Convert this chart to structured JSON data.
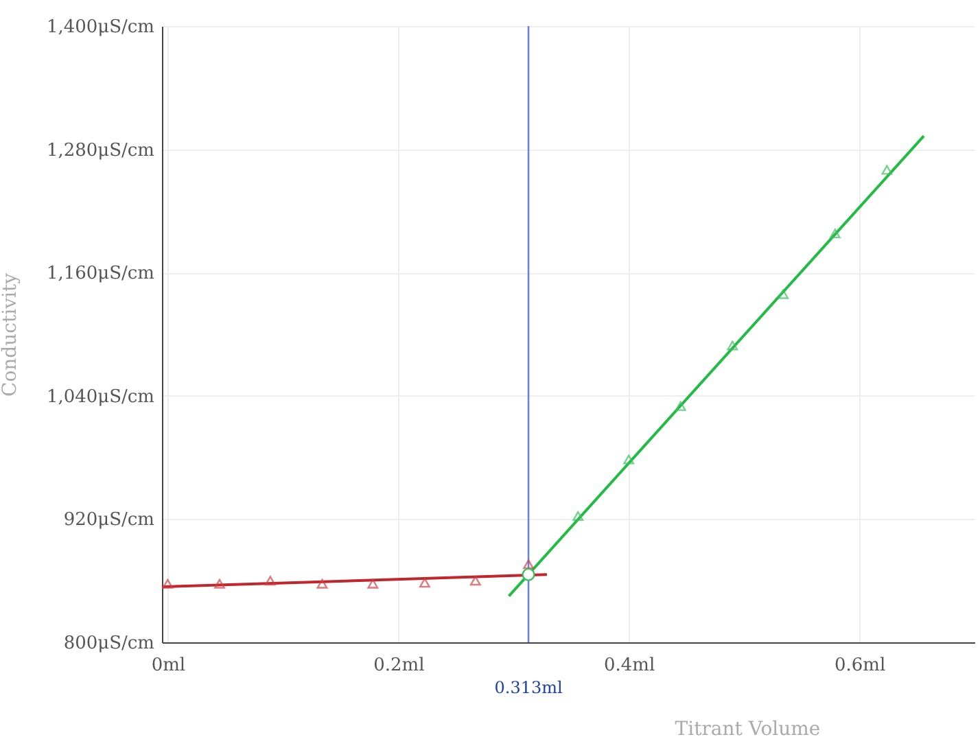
{
  "chart_data": {
    "type": "scatter",
    "xlabel": "Titrant Volume",
    "ylabel": "Conductivity",
    "xlim": [
      -0.005,
      0.7
    ],
    "ylim": [
      800,
      1400
    ],
    "xticks": [
      {
        "value": 0,
        "label": "0ml"
      },
      {
        "value": 0.2,
        "label": "0.2ml"
      },
      {
        "value": 0.4,
        "label": "0.4ml"
      },
      {
        "value": 0.6,
        "label": "0.6ml"
      }
    ],
    "yticks": [
      {
        "value": 800,
        "label": "800μS/cm"
      },
      {
        "value": 920,
        "label": "920μS/cm"
      },
      {
        "value": 1040,
        "label": "1,040μS/cm"
      },
      {
        "value": 1160,
        "label": "1,160μS/cm"
      },
      {
        "value": 1280,
        "label": "1,280μS/cm"
      },
      {
        "value": 1400,
        "label": "1,400μS/cm"
      }
    ],
    "grid": true,
    "series": [
      {
        "marker": "triangle",
        "color": "#d0424a",
        "x": [
          0,
          0.045,
          0.089,
          0.134,
          0.178,
          0.223,
          0.267,
          0.313
        ],
        "values": [
          857,
          857,
          860,
          857,
          857,
          858,
          860,
          876
        ]
      },
      {
        "type": "line",
        "color": "#c0262b",
        "x": [
          -0.005,
          0.329
        ],
        "values": [
          854,
          866
        ]
      },
      {
        "marker": "triangle",
        "color": "#3cc060",
        "x": [
          0.356,
          0.4,
          0.445,
          0.49,
          0.534,
          0.579,
          0.624
        ],
        "values": [
          923,
          978,
          1030,
          1089,
          1139,
          1198,
          1260
        ]
      },
      {
        "type": "line",
        "color": "#22bb44",
        "x": [
          0.296,
          0.656
        ],
        "values": [
          845,
          1293
        ]
      },
      {
        "marker": "circle",
        "color": "#3cc060",
        "x": [
          0.313
        ],
        "values": [
          866
        ]
      }
    ],
    "ref_lines": [
      {
        "axis": "x",
        "value": 0.313,
        "label": "0.313ml",
        "color": "#6a82d8"
      }
    ]
  }
}
